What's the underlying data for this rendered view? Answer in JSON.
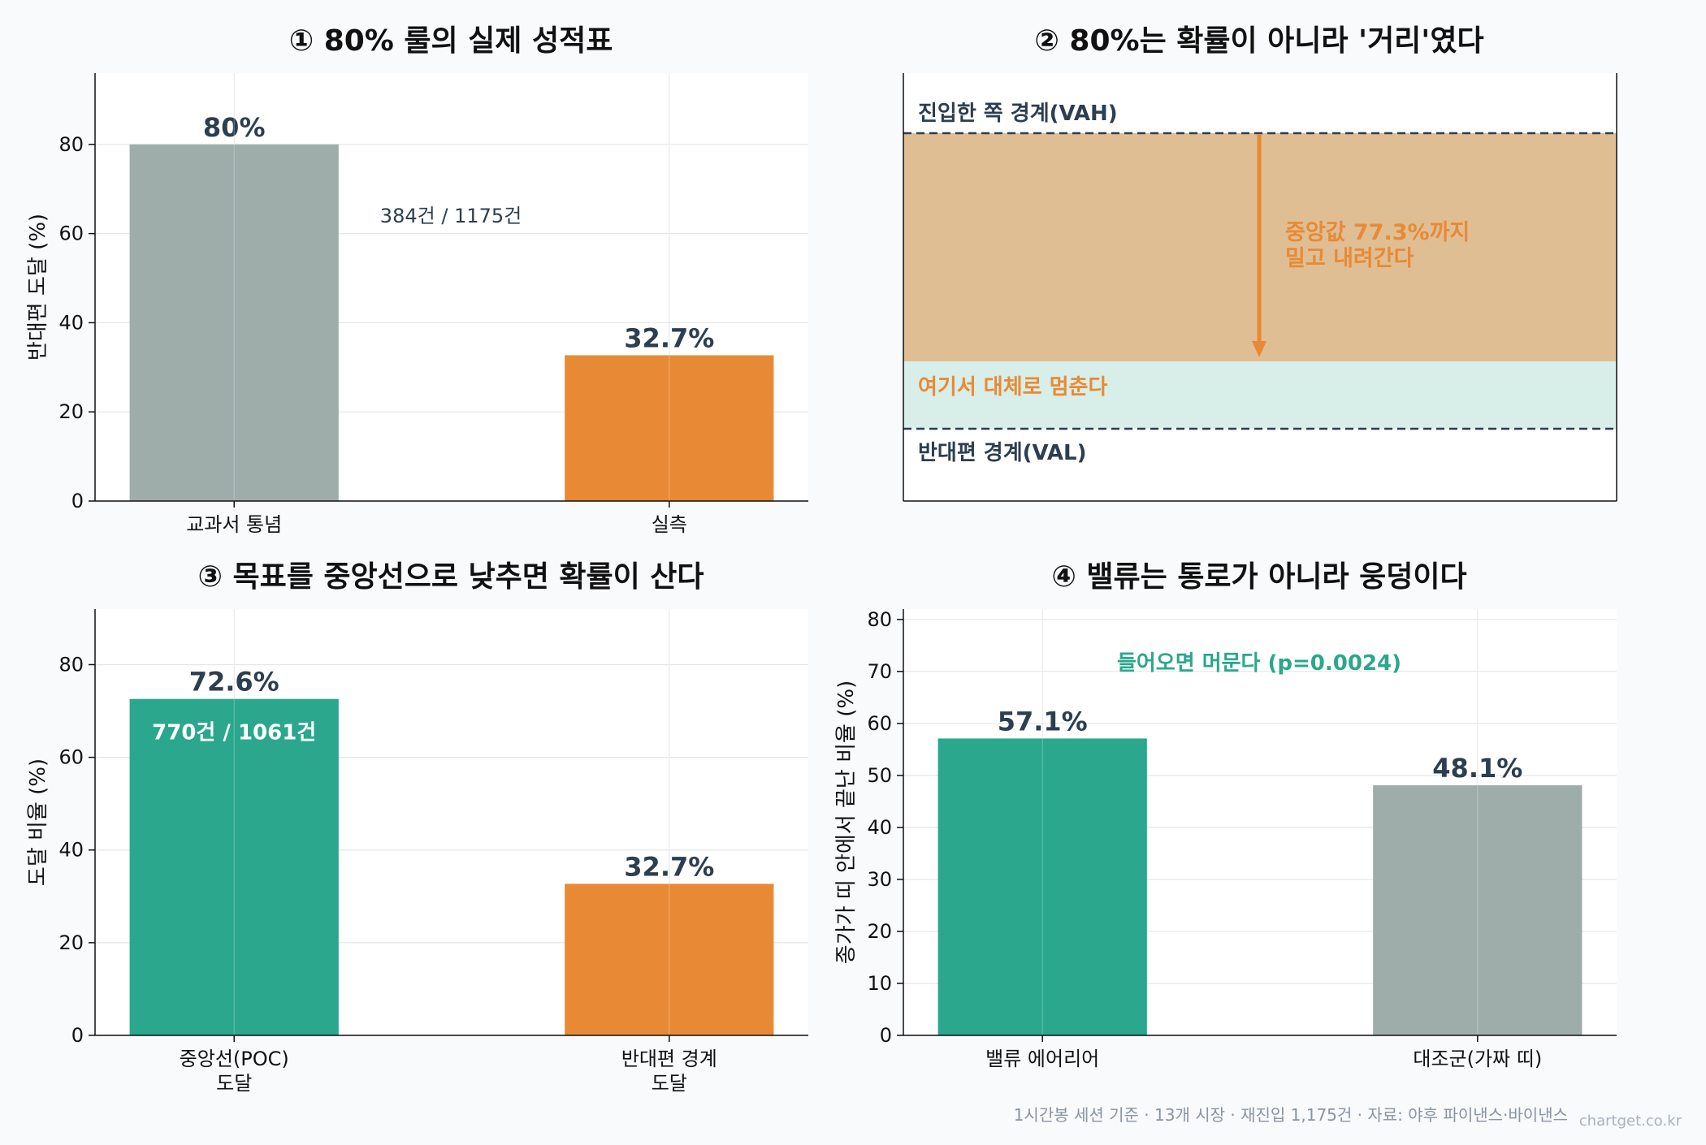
{
  "colors": {
    "teal": "#2aa78c",
    "orange": "#e88a35",
    "gray": "#9eacaa",
    "navy": "#2c3e50",
    "band_upper": "#dfbe94",
    "band_lower": "#d8eee8"
  },
  "chart_data": [
    {
      "type": "bar",
      "title": "① 80% 룰의 실제 성적표",
      "ylabel": "반대편 도달 (%)",
      "ylim": [
        0,
        96
      ],
      "yticks": [
        0,
        20,
        40,
        60,
        80
      ],
      "grid": true,
      "categories": [
        "교과서 통념",
        "실측"
      ],
      "values": [
        80,
        32.7
      ],
      "bar_colors": [
        "gray",
        "orange"
      ],
      "data_labels": [
        "80%",
        "32.7%"
      ],
      "annotation": "384건 / 1175건"
    },
    {
      "type": "diagram",
      "title": "② 80%는 확률이 아니라 '거리'였다",
      "upper_boundary_label": "진입한 쪽 경계(VAH)",
      "lower_boundary_label": "반대편 경계(VAL)",
      "arrow_text_line1": "중앙값 77.3%까지",
      "arrow_text_line2": "밀고 내려간다",
      "stop_zone_label": "여기서 대체로 멈춘다",
      "median_reach_pct": 77.3
    },
    {
      "type": "bar",
      "title": "③ 목표를 중앙선으로 낮추면 확률이 산다",
      "ylabel": "도달 비율 (%)",
      "ylim": [
        0,
        92
      ],
      "yticks": [
        0,
        20,
        40,
        60,
        80
      ],
      "grid": true,
      "categories": [
        "중앙선(POC)\n도달",
        "반대편 경계\n도달"
      ],
      "values": [
        72.6,
        32.7
      ],
      "bar_colors": [
        "teal",
        "orange"
      ],
      "data_labels": [
        "72.6%",
        "32.7%"
      ],
      "annotation": "770건 / 1061건"
    },
    {
      "type": "bar",
      "title": "④ 밸류는 통로가 아니라 웅덩이다",
      "ylabel": "종가가 띠 안에서 끝난 비율 (%)",
      "ylim": [
        0,
        82
      ],
      "yticks": [
        0,
        10,
        20,
        30,
        40,
        50,
        60,
        70,
        80
      ],
      "grid": true,
      "categories": [
        "밸류 에어리어",
        "대조군(가짜 띠)"
      ],
      "values": [
        57.1,
        48.1
      ],
      "bar_colors": [
        "teal",
        "gray"
      ],
      "data_labels": [
        "57.1%",
        "48.1%"
      ],
      "annotation": "들어오면 머문다 (p=0.0024)"
    }
  ],
  "footer": "1시간봉 세션 기준 · 13개 시장 · 재진입 1,175건 · 자료: 야후 파이낸스·바이낸스",
  "watermark": "chartget.co.kr"
}
